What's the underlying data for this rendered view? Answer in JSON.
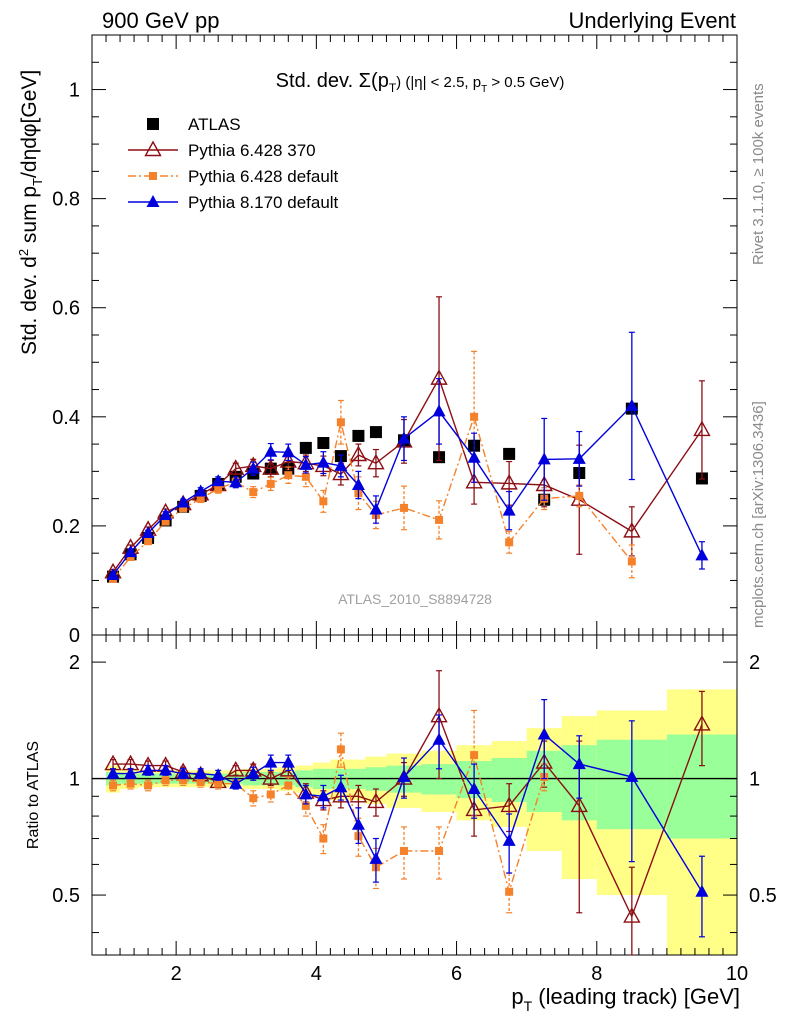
{
  "header": {
    "left": "900 GeV pp",
    "right": "Underlying Event"
  },
  "side_labels": {
    "rivet": "Rivet 3.1.10, ≥ 100k events",
    "mcplots": "mcplots.cern.ch [arXiv:1306.3436]"
  },
  "watermark": "ATLAS_2010_S8894728",
  "colors": {
    "atlas": "#000000",
    "p6_370": "#8b0f14",
    "p6_default": "#f5822b",
    "p8_default": "#0000dd",
    "band_outer": "#ffff88",
    "band_inner": "#99ff99"
  },
  "chart_data": [
    {
      "type": "scatter",
      "title": "Std. dev. Σ(pT) (|η| < 2.5, pT > 0.5 GeV)",
      "title_parts": {
        "main": "Std. dev. Σ(p",
        "sub": "T",
        "rest": ") (|η| < 2.5, p",
        "sub2": "T",
        "rest2": " > 0.5 GeV)"
      },
      "ylabel": "Std. dev. d² sum pT/dηdφ[GeV]",
      "ylabel_parts": {
        "a": "Std. dev. d",
        "sup": "2",
        "b": " sum p",
        "sub": "T",
        "c": "/dηdφ[GeV]"
      },
      "xlim": [
        0.8,
        10.0
      ],
      "ylim": [
        0.0,
        1.1
      ],
      "yticks": [
        0,
        0.2,
        0.4,
        0.6,
        0.8,
        1
      ],
      "ytick_labels": [
        "0",
        "0.2",
        "0.4",
        "0.6",
        "0.8",
        "1"
      ],
      "legend_position": "top-left",
      "legend": [
        "ATLAS",
        "Pythia 6.428 370",
        "Pythia 6.428 default",
        "Pythia 8.170 default"
      ],
      "x": [
        1.1,
        1.35,
        1.6,
        1.85,
        2.1,
        2.35,
        2.6,
        2.85,
        3.1,
        3.35,
        3.6,
        3.85,
        4.1,
        4.35,
        4.6,
        4.85,
        5.25,
        5.75,
        6.25,
        6.75,
        7.25,
        7.75,
        8.5,
        9.5
      ],
      "series": [
        {
          "name": "ATLAS",
          "marker": "square",
          "values": [
            0.107,
            0.148,
            0.178,
            0.21,
            0.235,
            0.255,
            0.277,
            0.29,
            0.296,
            0.305,
            0.305,
            0.343,
            0.352,
            0.328,
            0.365,
            0.372,
            0.357,
            0.326,
            0.347,
            0.332,
            0.248,
            0.297,
            0.415,
            0.287
          ]
        },
        {
          "name": "Pythia 6.428 370",
          "marker": "open-triangle",
          "line": "solid",
          "values": [
            0.115,
            0.16,
            0.193,
            0.225,
            0.24,
            0.258,
            0.275,
            0.305,
            0.31,
            0.305,
            0.318,
            0.315,
            0.31,
            0.295,
            0.33,
            0.315,
            0.355,
            0.47,
            0.28,
            0.278,
            0.275,
            0.248,
            0.19,
            0.376
          ],
          "errors": [
            0.005,
            0.005,
            0.005,
            0.006,
            0.006,
            0.007,
            0.008,
            0.01,
            0.012,
            0.015,
            0.015,
            0.015,
            0.018,
            0.02,
            0.02,
            0.025,
            0.04,
            0.15,
            0.04,
            0.04,
            0.04,
            0.1,
            0.045,
            0.09
          ]
        },
        {
          "name": "Pythia 6.428 default",
          "marker": "small-square",
          "line": "dashdot",
          "values": [
            0.103,
            0.143,
            0.172,
            0.208,
            0.232,
            0.25,
            0.268,
            0.28,
            0.262,
            0.277,
            0.293,
            0.29,
            0.245,
            0.39,
            0.26,
            0.22,
            0.233,
            0.211,
            0.4,
            0.17,
            0.25,
            0.255,
            0.135,
            null
          ],
          "errors": [
            0.004,
            0.005,
            0.005,
            0.006,
            0.006,
            0.007,
            0.008,
            0.008,
            0.01,
            0.012,
            0.015,
            0.018,
            0.02,
            0.04,
            0.03,
            0.025,
            0.04,
            0.035,
            0.12,
            0.02,
            0.02,
            0.02,
            0.03,
            null
          ]
        },
        {
          "name": "Pythia 8.170 default",
          "marker": "triangle",
          "line": "solid",
          "values": [
            0.11,
            0.152,
            0.187,
            0.22,
            0.243,
            0.263,
            0.282,
            0.28,
            0.305,
            0.336,
            0.335,
            0.312,
            0.316,
            0.31,
            0.275,
            0.23,
            0.36,
            0.41,
            0.325,
            0.228,
            0.322,
            0.323,
            0.42,
            0.146
          ],
          "errors": [
            0.004,
            0.005,
            0.005,
            0.006,
            0.006,
            0.007,
            0.008,
            0.01,
            0.012,
            0.015,
            0.015,
            0.015,
            0.02,
            0.02,
            0.025,
            0.025,
            0.04,
            0.06,
            0.045,
            0.035,
            0.075,
            0.05,
            0.135,
            0.025
          ]
        }
      ]
    },
    {
      "type": "scatter",
      "ylabel": "Ratio to ATLAS",
      "xlabel": "pT (leading track) [GeV]",
      "xlabel_parts": {
        "a": "p",
        "sub": "T",
        "b": " (leading track) [GeV]"
      },
      "xlim": [
        0.8,
        10.0
      ],
      "ylim": [
        0.35,
        2.35
      ],
      "xticks": [
        2,
        4,
        6,
        8,
        10
      ],
      "xtick_labels": [
        "2",
        "4",
        "6",
        "8",
        "10"
      ],
      "yticks": [
        0.5,
        1,
        2
      ],
      "ytick_labels": [
        "0.5",
        "1",
        "2"
      ],
      "bands": {
        "edges": [
          1.0,
          1.2,
          1.45,
          1.7,
          1.95,
          2.2,
          2.45,
          2.7,
          2.95,
          3.2,
          3.45,
          3.7,
          3.95,
          4.2,
          4.45,
          4.7,
          5.0,
          5.5,
          6.0,
          6.5,
          7.0,
          7.5,
          8.0,
          9.0,
          10.0
        ],
        "outer": [
          0.08,
          0.06,
          0.05,
          0.05,
          0.05,
          0.05,
          0.05,
          0.05,
          0.06,
          0.06,
          0.07,
          0.08,
          0.1,
          0.12,
          0.12,
          0.14,
          0.16,
          0.18,
          0.22,
          0.25,
          0.35,
          0.45,
          0.5,
          0.7
        ],
        "inner": [
          0.04,
          0.03,
          0.03,
          0.03,
          0.03,
          0.03,
          0.03,
          0.03,
          0.04,
          0.04,
          0.04,
          0.05,
          0.06,
          0.06,
          0.06,
          0.07,
          0.08,
          0.09,
          0.11,
          0.13,
          0.18,
          0.22,
          0.26,
          0.3
        ]
      },
      "series": [
        {
          "name": "Pythia 6.428 370",
          "values": [
            1.09,
            1.09,
            1.08,
            1.08,
            1.04,
            1.02,
            0.98,
            1.05,
            1.05,
            1.0,
            1.05,
            0.92,
            0.88,
            0.9,
            0.9,
            0.87,
            1.0,
            1.45,
            0.83,
            0.85,
            1.1,
            0.85,
            0.44,
            1.38
          ],
          "errors": [
            0.03,
            0.03,
            0.03,
            0.03,
            0.03,
            0.03,
            0.03,
            0.03,
            0.04,
            0.04,
            0.05,
            0.05,
            0.05,
            0.06,
            0.06,
            0.07,
            0.1,
            0.45,
            0.12,
            0.12,
            0.15,
            0.4,
            0.15,
            0.3
          ]
        },
        {
          "name": "Pythia 6.428 default",
          "values": [
            0.96,
            0.97,
            0.96,
            0.99,
            0.99,
            0.98,
            0.97,
            0.97,
            0.89,
            0.91,
            0.96,
            0.85,
            0.7,
            1.19,
            0.71,
            0.59,
            0.65,
            0.65,
            1.15,
            0.51,
            1.01,
            null,
            null,
            null
          ],
          "errors": [
            0.03,
            0.03,
            0.03,
            0.03,
            0.03,
            0.03,
            0.03,
            0.03,
            0.04,
            0.04,
            0.05,
            0.05,
            0.06,
            0.12,
            0.08,
            0.07,
            0.1,
            0.1,
            0.35,
            0.06,
            0.08,
            null,
            null,
            null
          ]
        },
        {
          "name": "Pythia 8.170 default",
          "values": [
            1.03,
            1.03,
            1.05,
            1.05,
            1.03,
            1.03,
            1.02,
            0.97,
            1.03,
            1.1,
            1.1,
            0.91,
            0.9,
            0.95,
            0.76,
            0.62,
            1.01,
            1.26,
            0.94,
            0.69,
            1.3,
            1.09,
            1.01,
            0.51
          ],
          "errors": [
            0.03,
            0.03,
            0.03,
            0.03,
            0.03,
            0.03,
            0.03,
            0.03,
            0.04,
            0.05,
            0.05,
            0.05,
            0.06,
            0.07,
            0.08,
            0.08,
            0.12,
            0.2,
            0.15,
            0.12,
            0.3,
            0.2,
            0.4,
            0.12
          ]
        }
      ]
    }
  ]
}
